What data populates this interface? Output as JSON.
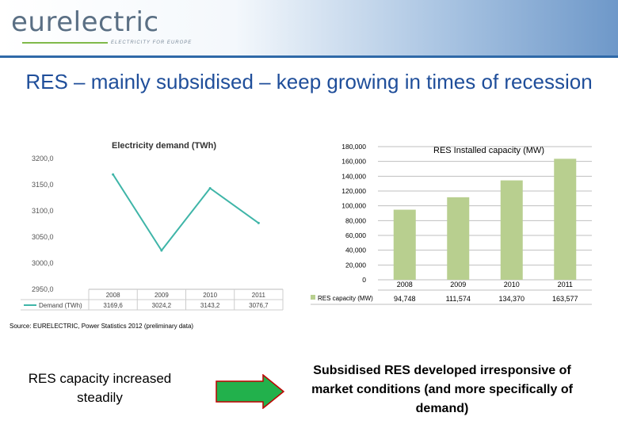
{
  "header": {
    "logo_text": "eurelectric",
    "tagline": "ELECTRICITY FOR EUROPE",
    "colors": {
      "logo_accent": "#3a7fc2",
      "header_band": "#2f69a8",
      "tagline_bar": "#7fb94a"
    }
  },
  "slide": {
    "title": "RES – mainly subsidised – keep growing in times of recession",
    "source": "Source: EURELECTRIC, Power Statistics 2012 (preliminary data)",
    "left_note": "RES capacity increased steadily",
    "right_note": "Subsidised RES developed irresponsive of market conditions (and more specifically of demand)",
    "arrow_color": "#22b14c"
  },
  "chart_data": [
    {
      "type": "line",
      "title": "Electricity demand (TWh)",
      "categories": [
        "2008",
        "2009",
        "2010",
        "2011"
      ],
      "series": [
        {
          "name": "Demand (TWh)",
          "values": [
            3169.6,
            3024.2,
            3143.2,
            3076.7
          ],
          "value_labels": [
            "3169,6",
            "3024,2",
            "3143,2",
            "3076,7"
          ],
          "color": "#3fb5a8"
        }
      ],
      "y_tick_labels": [
        "3200,0",
        "3150,0",
        "3100,0",
        "3050,0",
        "3000,0",
        "2950,0"
      ],
      "ylim": [
        2950,
        3200
      ],
      "legend": "bottom-left table",
      "grid": false
    },
    {
      "type": "bar",
      "title": "RES Installed capacity (MW)",
      "categories": [
        "2008",
        "2009",
        "2010",
        "2011"
      ],
      "series": [
        {
          "name": "RES capacity (MW)",
          "values": [
            94748,
            111574,
            134370,
            163577
          ],
          "value_labels": [
            "94,748",
            "111,574",
            "134,370",
            "163,577"
          ],
          "color": "#b8cf8f"
        }
      ],
      "y_tick_labels": [
        "0",
        "20,000",
        "40,000",
        "60,000",
        "80,000",
        "100,000",
        "120,000",
        "140,000",
        "160,000",
        "180,000"
      ],
      "ylim": [
        0,
        180000
      ],
      "legend": "data table below",
      "grid": true
    }
  ]
}
